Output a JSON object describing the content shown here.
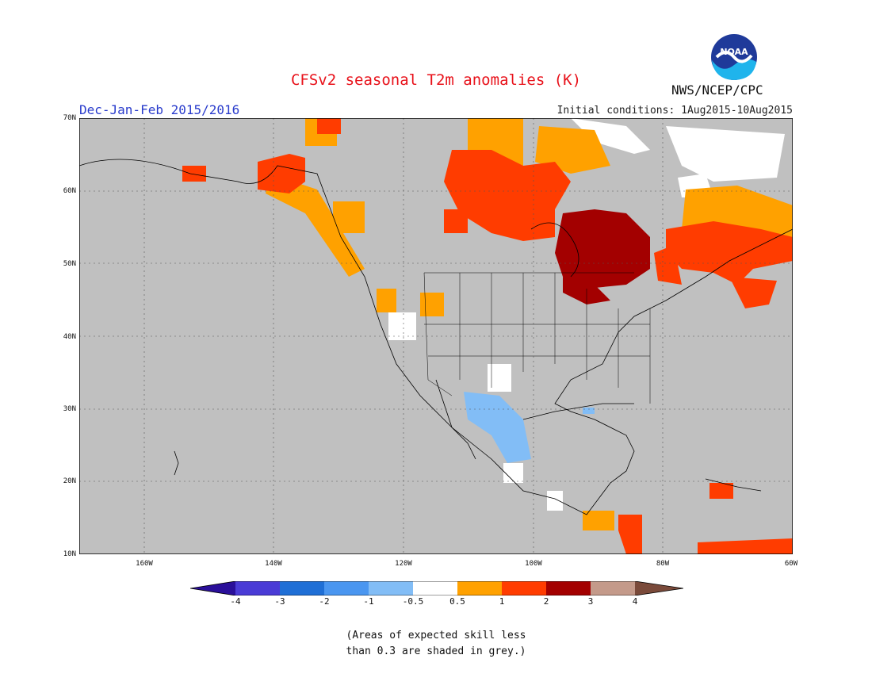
{
  "title": "CFSv2 seasonal T2m anomalies (K)",
  "season": "Dec-Jan-Feb 2015/2016",
  "initial_conditions": "Initial conditions: 1Aug2015-10Aug2015",
  "agency": "NWS/NCEP/CPC",
  "logo_text": "NOAA",
  "map": {
    "lat_labels": [
      "70N",
      "60N",
      "50N",
      "40N",
      "30N",
      "20N",
      "10N"
    ],
    "lon_labels": [
      "160W",
      "140W",
      "120W",
      "100W",
      "80W",
      "60W"
    ],
    "lat_range": [
      10,
      70
    ],
    "lon_range": [
      -170,
      -60
    ],
    "background_grey": "#c0c0c0",
    "skill_note": "Areas of expected skill less than 0.3 are shaded in grey"
  },
  "colorbar": {
    "labels": [
      "-4",
      "-3",
      "-2",
      "-1",
      "-0.5",
      "0.5",
      "1",
      "2",
      "3",
      "4"
    ],
    "colors": [
      "#2a0f9a",
      "#4a3bd6",
      "#1f6fd6",
      "#4a96f0",
      "#82bdf6",
      "#ffffff",
      "#ffa100",
      "#ff3c00",
      "#a30000",
      "#c49a8a",
      "#7a4a3a"
    ]
  },
  "note_line1": "(Areas of expected skill less",
  "note_line2": "than 0.3 are shaded in grey.)"
}
